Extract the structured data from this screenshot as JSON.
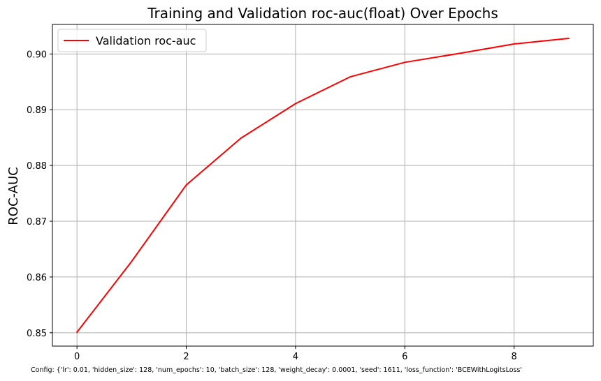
{
  "chart_data": {
    "type": "line",
    "title": "Training and Validation roc-auc(float) Over Epochs",
    "xlabel": "",
    "ylabel": "ROC-AUC",
    "xlim": [
      -0.45,
      9.45
    ],
    "ylim": [
      0.8476,
      0.9053
    ],
    "xticks": [
      0,
      2,
      4,
      6,
      8
    ],
    "yticks": [
      0.85,
      0.86,
      0.87,
      0.88,
      0.89,
      0.9
    ],
    "ytick_labels": [
      "0.85",
      "0.86",
      "0.87",
      "0.88",
      "0.89",
      "0.90"
    ],
    "grid": true,
    "legend_position": "upper-left",
    "series": [
      {
        "name": "Validation roc-auc",
        "color": "#ff0000",
        "x": [
          0,
          1,
          2,
          3,
          4,
          5,
          6,
          7,
          8,
          9
        ],
        "y": [
          0.8501,
          0.8628,
          0.8765,
          0.8849,
          0.8911,
          0.8959,
          0.8985,
          0.9001,
          0.9018,
          0.9028
        ]
      }
    ]
  },
  "footer": {
    "config_text": "Config: {'lr': 0.01, 'hidden_size': 128, 'num_epochs': 10, 'batch_size': 128, 'weight_decay': 0.0001, 'seed': 1611, 'loss_function': 'BCEWithLogitsLoss'"
  }
}
